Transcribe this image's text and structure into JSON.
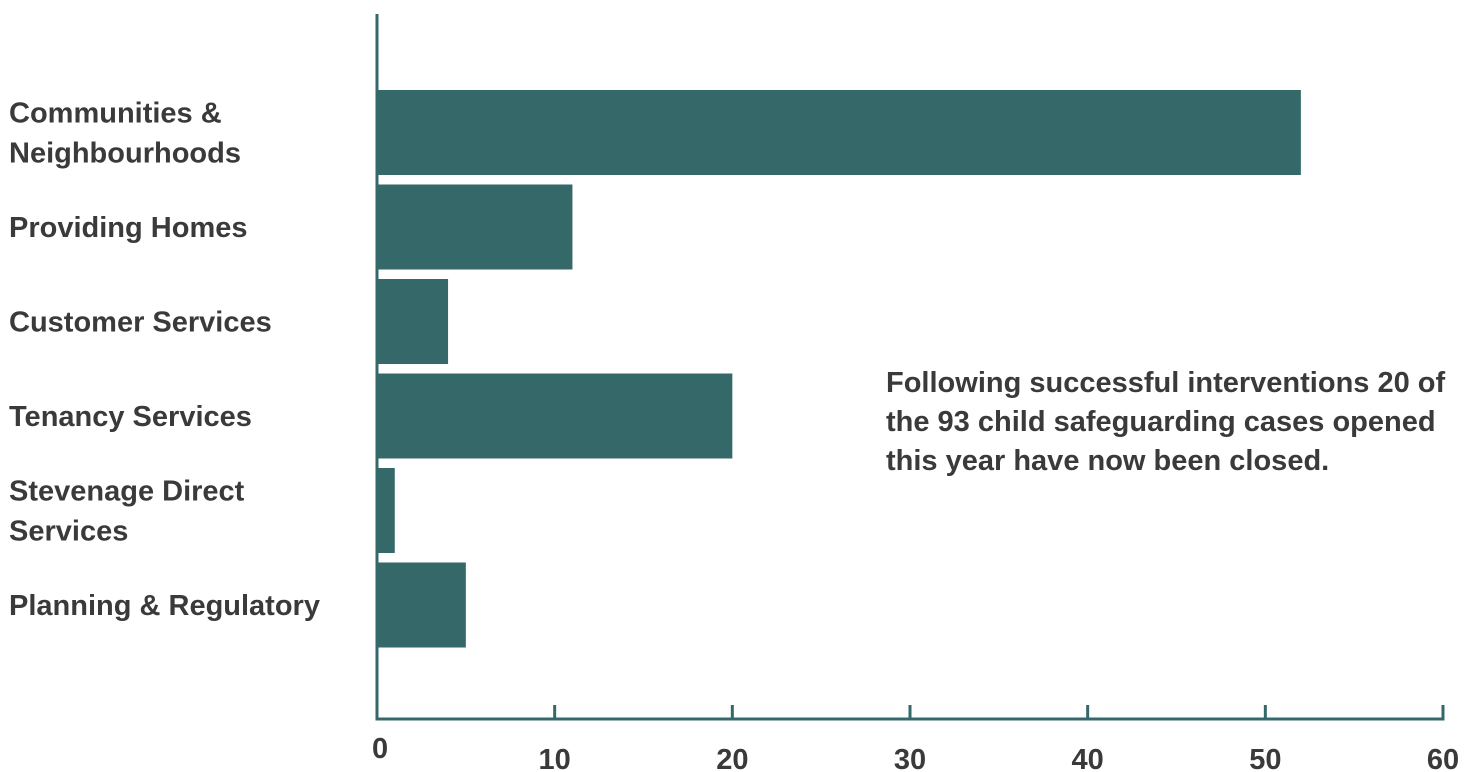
{
  "chart_data": {
    "type": "bar",
    "orientation": "horizontal",
    "categories": [
      [
        "Communities &",
        "Neighbourhoods"
      ],
      [
        "Providing Homes"
      ],
      [
        "Customer Services"
      ],
      [
        "Tenancy Services"
      ],
      [
        "Stevenage Direct",
        "Services"
      ],
      [
        "Planning & Regulatory"
      ]
    ],
    "values": [
      52,
      11,
      4,
      20,
      1,
      5
    ],
    "xlim": [
      0,
      60
    ],
    "ticks": [
      "0",
      "10",
      "20",
      "30",
      "40",
      "50",
      "60"
    ],
    "title": "",
    "xlabel": "",
    "ylabel": "",
    "grid": false,
    "legend": "none",
    "bar_color": "#356868",
    "axis_color": "#356868",
    "text_color": "#3a3a3a",
    "annotation": "Following successful interventions 20 of the 93 child safeguarding cases opened this year have now been closed."
  }
}
